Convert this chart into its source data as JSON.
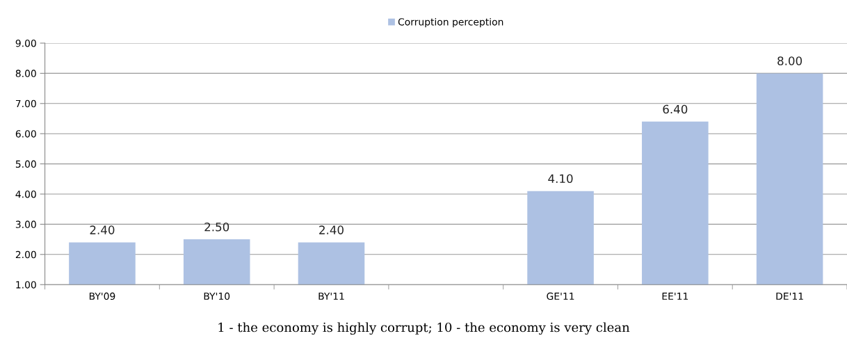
{
  "chart_data": {
    "type": "bar",
    "categories": [
      "BY'09",
      "BY'10",
      "BY'11",
      null,
      "GE'11",
      "EE'11",
      "DE'11"
    ],
    "series": [
      {
        "name": "Corruption perception",
        "color": "#adc1e3",
        "values": [
          2.4,
          2.5,
          2.4,
          null,
          4.1,
          6.4,
          8.0
        ],
        "value_labels": [
          "2.40",
          "2.50",
          "2.40",
          null,
          "4.10",
          "6.40",
          "8.00"
        ]
      }
    ],
    "ylim": [
      1,
      9
    ],
    "yticks": [
      {
        "value": 1,
        "label": "1.00"
      },
      {
        "value": 2,
        "label": "2.00"
      },
      {
        "value": 3,
        "label": "3.00"
      },
      {
        "value": 4,
        "label": "4.00"
      },
      {
        "value": 5,
        "label": "5.00"
      },
      {
        "value": 6,
        "label": "6.00"
      },
      {
        "value": 7,
        "label": "7.00"
      },
      {
        "value": 8,
        "label": "8.00"
      },
      {
        "value": 9,
        "label": "9.00"
      }
    ],
    "grid": "y",
    "legend": "top",
    "annotations": [
      "1 - the economy is highly corrupt; 10 - the economy is very clean"
    ]
  }
}
